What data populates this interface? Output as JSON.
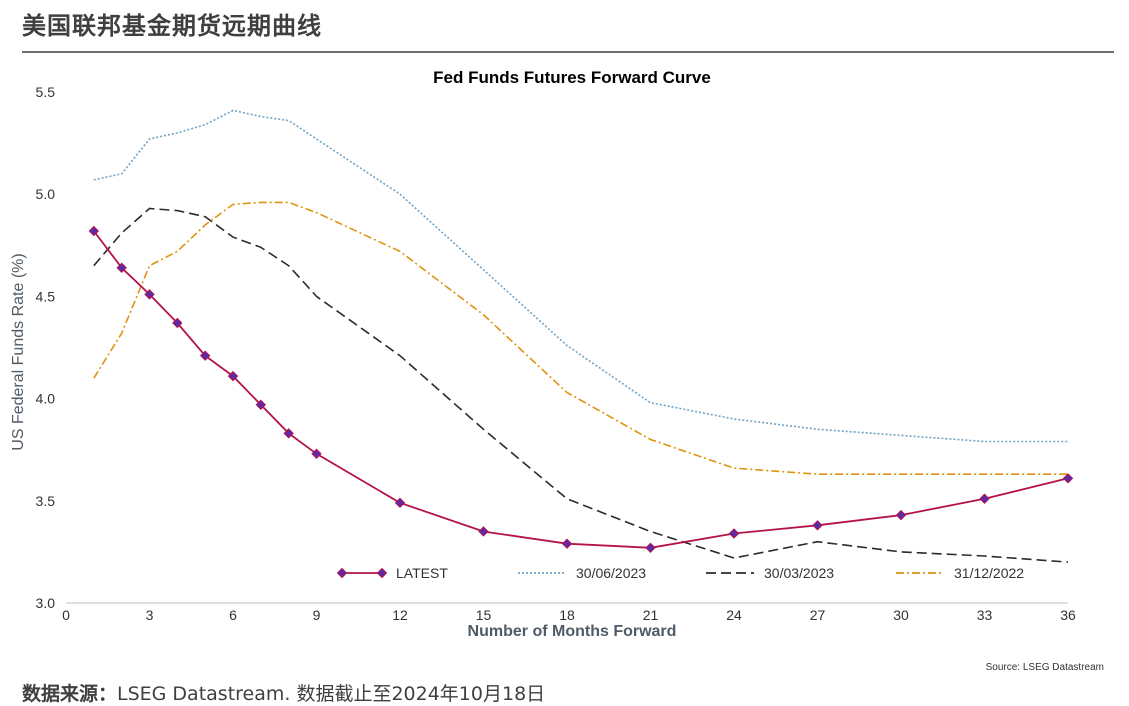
{
  "page": {
    "header": "美国联邦基金期货远期曲线",
    "footer_label": "数据来源：",
    "footer_text": "LSEG Datastream. 数据截止至2024年10月18日"
  },
  "chart_data": {
    "type": "line",
    "title": "Fed Funds Futures Forward Curve",
    "xlabel": "Number of Months Forward",
    "ylabel": "US Federal Funds Rate (%)",
    "source_note": "Source: LSEG Datastream",
    "xlim": [
      0,
      36
    ],
    "ylim": [
      3.0,
      5.5
    ],
    "x_ticks": [
      0,
      3,
      6,
      9,
      12,
      15,
      18,
      21,
      24,
      27,
      30,
      33,
      36
    ],
    "y_ticks": [
      3.0,
      3.5,
      4.0,
      4.5,
      5.0,
      5.5
    ],
    "y_tick_labels": [
      "3.0",
      "3.5",
      "4.0",
      "4.5",
      "5.0",
      "5.5"
    ],
    "legend_position": "bottom-inside",
    "series": [
      {
        "name": "LATEST",
        "color": "#b5124a",
        "marker_color": "#5b2aa8",
        "style": "solid-marker",
        "x": [
          1,
          2,
          3,
          4,
          5,
          6,
          7,
          8,
          9,
          12,
          15,
          18,
          21,
          24,
          27,
          30,
          33,
          36
        ],
        "values": [
          4.82,
          4.64,
          4.51,
          4.37,
          4.21,
          4.11,
          3.97,
          3.83,
          3.73,
          3.49,
          3.35,
          3.29,
          3.27,
          3.34,
          3.38,
          3.43,
          3.51,
          3.61
        ]
      },
      {
        "name": "30/06/2023",
        "color": "#6ea3c6",
        "style": "dotted",
        "x": [
          1,
          2,
          3,
          4,
          5,
          6,
          7,
          8,
          9,
          12,
          15,
          18,
          21,
          24,
          27,
          30,
          33,
          36
        ],
        "values": [
          5.07,
          5.1,
          5.27,
          5.3,
          5.34,
          5.41,
          5.38,
          5.36,
          5.27,
          5.0,
          4.63,
          4.26,
          3.98,
          3.9,
          3.85,
          3.82,
          3.79,
          3.79
        ]
      },
      {
        "name": "30/03/2023",
        "color": "#2b2b2b",
        "style": "dashed",
        "x": [
          1,
          2,
          3,
          4,
          5,
          6,
          7,
          8,
          9,
          12,
          15,
          18,
          21,
          24,
          27,
          30,
          33,
          36
        ],
        "values": [
          4.65,
          4.81,
          4.93,
          4.92,
          4.89,
          4.79,
          4.74,
          4.65,
          4.5,
          4.21,
          3.85,
          3.51,
          3.35,
          3.22,
          3.3,
          3.25,
          3.23,
          3.2
        ]
      },
      {
        "name": "31/12/2022",
        "color": "#e0920f",
        "style": "dashdot",
        "x": [
          1,
          2,
          3,
          4,
          5,
          6,
          7,
          8,
          9,
          12,
          15,
          18,
          21,
          24,
          27,
          30,
          33,
          36
        ],
        "values": [
          4.1,
          4.32,
          4.65,
          4.72,
          4.85,
          4.95,
          4.96,
          4.96,
          4.91,
          4.72,
          4.41,
          4.03,
          3.8,
          3.66,
          3.63,
          3.63,
          3.63,
          3.63
        ]
      }
    ]
  }
}
